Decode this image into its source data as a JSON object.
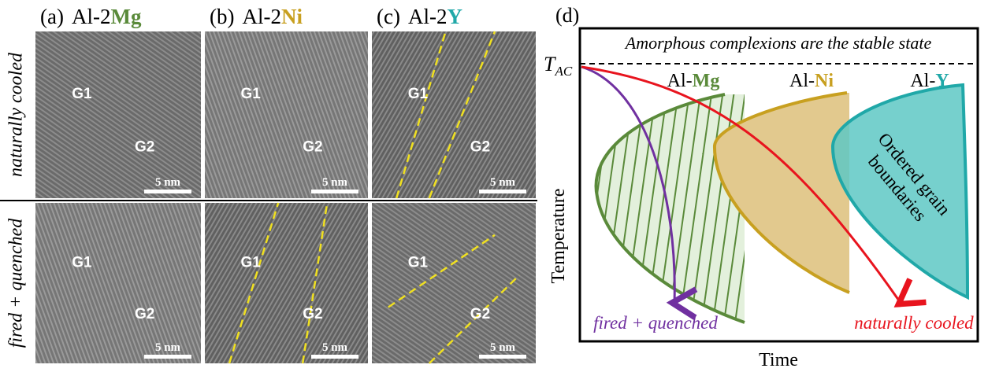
{
  "panels": [
    {
      "label": "(a)",
      "prefix": "Al-2",
      "element": "Mg",
      "color": "#5a8a3a"
    },
    {
      "label": "(b)",
      "prefix": "Al-2",
      "element": "Ni",
      "color": "#c8a020"
    },
    {
      "label": "(c)",
      "prefix": "Al-2",
      "element": "Y",
      "color": "#20a8a8"
    }
  ],
  "rows": [
    "naturally cooled",
    "fired + quenched"
  ],
  "images": [
    [
      {
        "g1": "G1",
        "g2": "G2",
        "scale": "5 nm"
      },
      {
        "g1": "G1",
        "g2": "G2",
        "scale": "5 nm"
      },
      {
        "g1": "G1",
        "g2": "G2",
        "scale": "5 nm"
      }
    ],
    [
      {
        "g1": "G1",
        "g2": "G2",
        "scale": "5 nm"
      },
      {
        "g1": "G1",
        "g2": "G2",
        "scale": "5 nm"
      },
      {
        "g1": "G1",
        "g2": "G2",
        "scale": "5 nm"
      }
    ]
  ],
  "diagram": {
    "label": "(d)",
    "banner": "Amorphous complexions are the stable state",
    "t_symbol": "T",
    "t_sub": "AC",
    "regions": [
      {
        "prefix": "Al-",
        "element": "Mg"
      },
      {
        "prefix": "Al-",
        "element": "Ni"
      },
      {
        "prefix": "Al-",
        "element": "Y"
      }
    ],
    "region_text": [
      "Ordered grain",
      "boundaries"
    ],
    "y_axis": "Temperature",
    "x_axis": "Time",
    "curves": [
      "fired + quenched",
      "naturally cooled"
    ]
  }
}
